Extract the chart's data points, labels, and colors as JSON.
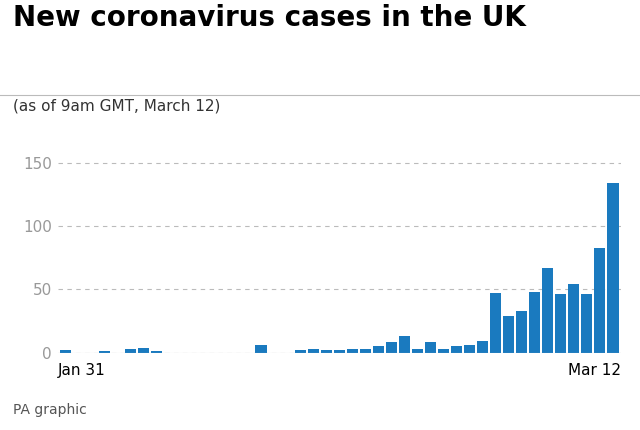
{
  "title": "New coronavirus cases in the UK",
  "subtitle": "(as of 9am GMT, March 12)",
  "footer": "PA graphic",
  "bar_color": "#1a7abf",
  "background_color": "#ffffff",
  "ylim": [
    0,
    160
  ],
  "yticks": [
    0,
    50,
    100,
    150
  ],
  "xlabel_left": "Jan 31",
  "xlabel_right": "Mar 12",
  "values": [
    2,
    0,
    0,
    1,
    0,
    3,
    4,
    1,
    0,
    0,
    0,
    0,
    0,
    0,
    0,
    6,
    0,
    0,
    2,
    3,
    2,
    2,
    3,
    3,
    5,
    8,
    13,
    3,
    8,
    3,
    5,
    6,
    9,
    47,
    29,
    33,
    48,
    67,
    46,
    54,
    46,
    83,
    134
  ],
  "title_fontsize": 20,
  "subtitle_fontsize": 11,
  "footer_fontsize": 10,
  "tick_fontsize": 11,
  "xlabel_fontsize": 11,
  "title_color": "#000000",
  "subtitle_color": "#333333",
  "footer_color": "#555555",
  "tick_color": "#999999",
  "grid_color": "#bbbbbb",
  "separator_color": "#bbbbbb"
}
